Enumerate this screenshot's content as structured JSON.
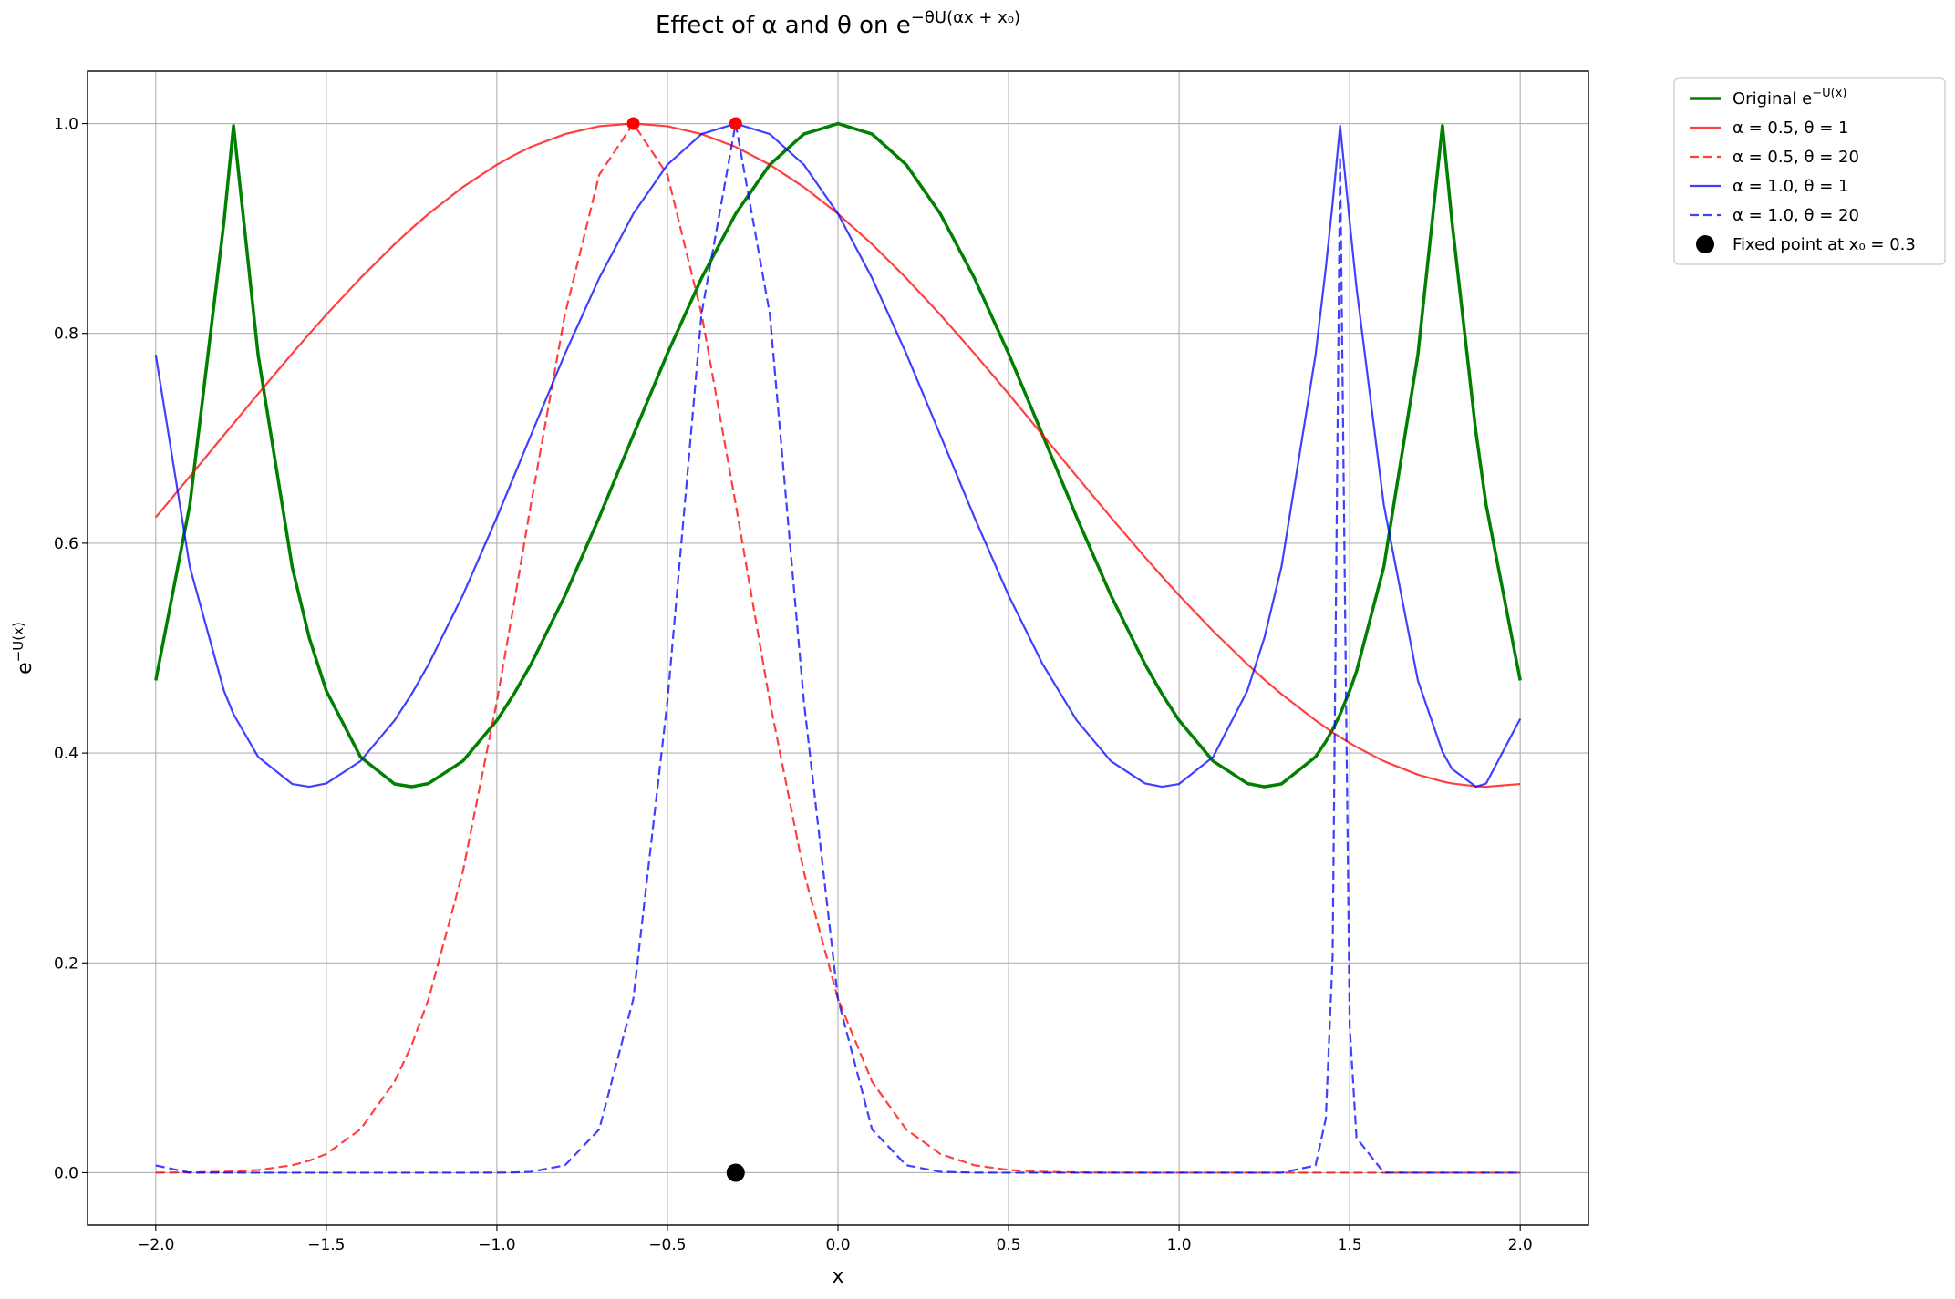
{
  "chart_data": {
    "type": "line",
    "title": {
      "text": "Effect of α and θ on e",
      "superscript": "−θU(αx + x₀)"
    },
    "xlabel": "x",
    "ylabel": {
      "text": "e",
      "superscript": "−U(x)"
    },
    "xlim": [
      -2.2,
      2.2
    ],
    "ylim": [
      -0.05,
      1.05
    ],
    "xticks": [
      {
        "value": -2,
        "label": "−2.0"
      },
      {
        "value": -1.5,
        "label": "−1.5"
      },
      {
        "value": -1,
        "label": "−1.0"
      },
      {
        "value": -0.5,
        "label": "−0.5"
      },
      {
        "value": 0,
        "label": "0.0"
      },
      0.5,
      {
        "value": 1,
        "label": "1.0"
      },
      1.5,
      {
        "value": 2,
        "label": "2.0"
      }
    ],
    "yticks": [
      {
        "value": 0,
        "label": "0.0"
      },
      0.2,
      0.4,
      0.6,
      0.8,
      {
        "value": 1,
        "label": "1.0"
      }
    ],
    "grid": true,
    "legend": "outside-upper-right",
    "x": [
      -2.0,
      -1.9,
      -1.8,
      -1.772,
      -1.7,
      -1.6,
      -1.55,
      -1.5,
      -1.4,
      -1.3,
      -1.25,
      -1.2,
      -1.1,
      -1.0,
      -0.95,
      -0.9,
      -0.8,
      -0.7,
      -0.6,
      -0.5,
      -0.4,
      -0.3,
      -0.2,
      -0.1,
      0,
      0.1,
      0.2,
      0.3,
      0.4,
      0.5,
      0.6,
      0.7,
      0.8,
      0.9,
      0.95,
      1.0,
      1.1,
      1.2,
      1.25,
      1.3,
      1.4,
      1.43,
      1.45,
      1.472,
      1.5,
      1.52,
      1.6,
      1.7,
      1.772,
      1.8,
      1.87,
      1.9,
      2.0
    ],
    "series": [
      {
        "name": "Original e",
        "name_superscript": "−U(x)",
        "color": "green",
        "opacity": 1,
        "width": 3.5,
        "dashed": false,
        "values": [
          0.4692,
          0.6367,
          0.9065,
          0.998,
          0.7796,
          0.5773,
          0.5098,
          0.4593,
          0.3964,
          0.3705,
          0.3679,
          0.371,
          0.3923,
          0.4311,
          0.4562,
          0.4847,
          0.5503,
          0.6246,
          0.7031,
          0.7808,
          0.8527,
          0.914,
          0.9608,
          0.99,
          1,
          0.99,
          0.9608,
          0.914,
          0.8527,
          0.7808,
          0.7031,
          0.6246,
          0.5503,
          0.4847,
          0.4562,
          0.4311,
          0.3923,
          0.371,
          0.3679,
          0.3705,
          0.3964,
          0.4109,
          0.4224,
          0.437,
          0.4593,
          0.4777,
          0.5773,
          0.7796,
          0.998,
          0.9065,
          0.7062,
          0.6367,
          0.4692
        ]
      },
      {
        "name": "α = 0.5, θ = 1",
        "color": "red",
        "opacity": 0.75,
        "width": 2.2,
        "dashed": false,
        "values": [
          0.6246,
          0.6637,
          0.7031,
          0.7141,
          0.7424,
          0.7808,
          0.7995,
          0.8178,
          0.8527,
          0.885,
          0.9,
          0.914,
          0.9394,
          0.9608,
          0.9698,
          0.9778,
          0.99,
          0.9975,
          1,
          0.9975,
          0.99,
          0.9778,
          0.9608,
          0.9394,
          0.914,
          0.885,
          0.8527,
          0.8178,
          0.7808,
          0.7424,
          0.7031,
          0.6637,
          0.6246,
          0.5867,
          0.5683,
          0.5503,
          0.5162,
          0.4847,
          0.47,
          0.4562,
          0.4311,
          0.4243,
          0.4197,
          0.4152,
          0.4096,
          0.4058,
          0.3923,
          0.3794,
          0.3729,
          0.371,
          0.3683,
          0.3679,
          0.3705
        ]
      },
      {
        "name": "α = 0.5, θ = 20",
        "color": "red",
        "opacity": 0.75,
        "width": 2.2,
        "dashed": true,
        "values": [
          0.0001,
          0.0003,
          0.0009,
          0.0012,
          0.0026,
          0.0071,
          0.0114,
          0.0179,
          0.0413,
          0.0868,
          0.1215,
          0.1656,
          0.2865,
          0.4493,
          0.542,
          0.6376,
          0.8187,
          0.9512,
          1,
          0.9512,
          0.8187,
          0.6376,
          0.4493,
          0.2865,
          0.1656,
          0.0868,
          0.0413,
          0.0179,
          0.0071,
          0.0026,
          0.0009,
          0.0003,
          0.0001,
          0,
          0,
          0,
          0,
          0,
          0,
          0,
          0,
          0,
          0,
          0,
          0,
          0,
          0,
          0,
          0,
          0,
          0,
          0,
          0
        ]
      },
      {
        "name": "α = 1.0, θ = 1",
        "color": "blue",
        "opacity": 0.75,
        "width": 2.2,
        "dashed": false,
        "values": [
          0.7796,
          0.5773,
          0.4593,
          0.437,
          0.3964,
          0.3705,
          0.3679,
          0.371,
          0.3923,
          0.4311,
          0.4562,
          0.4847,
          0.5503,
          0.6246,
          0.6637,
          0.7031,
          0.7808,
          0.8527,
          0.914,
          0.9608,
          0.99,
          1,
          0.99,
          0.9608,
          0.914,
          0.8527,
          0.7808,
          0.7031,
          0.6246,
          0.5503,
          0.4847,
          0.4311,
          0.3923,
          0.371,
          0.3679,
          0.3705,
          0.3964,
          0.4593,
          0.5098,
          0.5773,
          0.7796,
          0.8622,
          0.924,
          0.998,
          0.9065,
          0.8436,
          0.6367,
          0.4692,
          0.4012,
          0.3849,
          0.3679,
          0.3709,
          0.4327
        ]
      },
      {
        "name": "α = 1.0, θ = 20",
        "color": "blue",
        "opacity": 0.75,
        "width": 2.2,
        "dashed": true,
        "values": [
          0.0069,
          0,
          0,
          0,
          0,
          0,
          0,
          0,
          0,
          0,
          0,
          0,
          0,
          0.0001,
          0.0003,
          0.0009,
          0.0071,
          0.0413,
          0.1656,
          0.4493,
          0.8187,
          1,
          0.8187,
          0.4493,
          0.1656,
          0.0413,
          0.0071,
          0.0009,
          0.0001,
          0,
          0,
          0,
          0,
          0,
          0,
          0,
          0,
          0,
          0,
          0,
          0.0069,
          0.0515,
          0.2055,
          0.9685,
          0.1403,
          0.0333,
          0.0001,
          0,
          0,
          0,
          0,
          0,
          0
        ]
      }
    ],
    "markers": {
      "color": "red",
      "x": [
        -0.6,
        -0.3
      ],
      "values": [
        1,
        1
      ]
    },
    "points": [
      {
        "name": "Fixed point at x₀ = 0.3",
        "color": "black",
        "x": [
          -0.3
        ],
        "values": [
          0
        ]
      }
    ]
  }
}
